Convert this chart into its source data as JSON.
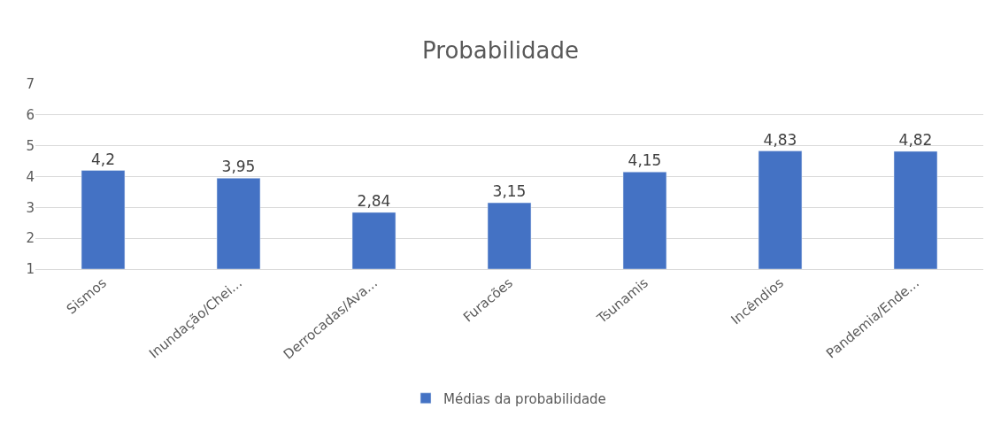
{
  "chart_data": {
    "type": "bar",
    "title": "Probabilidade",
    "categories": [
      "Sismos",
      "Inundação/Chei...",
      "Derrocadas/Ava...",
      "Furacões",
      "Tsunamis",
      "Incêndios",
      "Pandemia/Ende..."
    ],
    "series": [
      {
        "name": "Médias da probabilidade",
        "color": "#4472c4",
        "values": [
          4.2,
          3.95,
          2.84,
          3.15,
          4.15,
          4.83,
          4.82
        ],
        "value_labels": [
          "4,2",
          "3,95",
          "2,84",
          "3,15",
          "4,15",
          "4,83",
          "4,82"
        ]
      }
    ],
    "ylim": [
      1,
      7
    ],
    "yticks": [
      1,
      2,
      3,
      4,
      5,
      6,
      7
    ],
    "grid": "y",
    "legend": "bottom"
  }
}
